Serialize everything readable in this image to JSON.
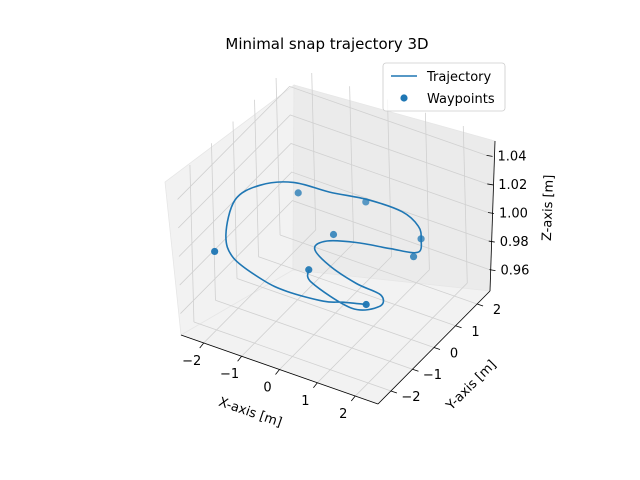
{
  "chart_data": {
    "type": "line",
    "projection": "3d",
    "title": "Minimal snap trajectory 3D",
    "xlabel": "X-axis [m]",
    "ylabel": "Y-axis [m]",
    "zlabel": "Z-axis [m]",
    "xlim": [
      -2.6,
      2.6
    ],
    "ylim": [
      -2.6,
      2.6
    ],
    "zlim": [
      0.945,
      1.055
    ],
    "x_ticks": [
      -2,
      -1,
      0,
      1,
      2
    ],
    "y_ticks": [
      -2,
      -1,
      0,
      1,
      2
    ],
    "z_ticks": [
      0.96,
      0.98,
      1.0,
      1.02,
      1.04
    ],
    "x_tick_labels": [
      "−2",
      "−1",
      "0",
      "1",
      "2"
    ],
    "y_tick_labels": [
      "−2",
      "−1",
      "0",
      "1",
      "2"
    ],
    "z_tick_labels": [
      "0.96",
      "0.98",
      "1.00",
      "1.02",
      "1.04"
    ],
    "grid": true,
    "legend_position": "top-right",
    "series": [
      {
        "name": "Trajectory",
        "type": "line",
        "color": "#1f77b4",
        "note_points": "approximate path read from the rendered curve",
        "x": [
          2.0,
          1.5,
          1.1,
          0.2,
          -0.5,
          -1.5,
          -2.1,
          -2.6,
          -2.4,
          -1.8,
          -0.9,
          0.0,
          0.9,
          1.5,
          1.8,
          2.0,
          1.4,
          0.6,
          0.0,
          -0.1,
          0.5,
          1.4,
          2.1,
          2.3,
          1.8,
          0.5,
          0.2
        ],
        "y": [
          -2.0,
          -2.2,
          -2.4,
          -2.5,
          -2.4,
          -2.0,
          -1.3,
          0.0,
          0.8,
          1.3,
          1.4,
          1.6,
          1.6,
          1.3,
          0.9,
          0.4,
          0.2,
          0.0,
          -0.3,
          -0.7,
          -1.1,
          -1.4,
          -1.5,
          -1.9,
          -2.3,
          -1.9,
          -1.5
        ],
        "z": [
          1.0,
          1.0,
          1.0,
          1.0,
          1.0,
          1.0,
          1.0,
          1.0,
          1.0,
          1.0,
          1.0,
          1.0,
          1.0,
          1.0,
          1.0,
          1.0,
          1.0,
          1.0,
          1.0,
          1.0,
          1.0,
          1.0,
          1.0,
          1.0,
          1.0,
          1.0,
          1.0
        ]
      },
      {
        "name": "Waypoints",
        "type": "scatter",
        "color": "#1f77b4",
        "x": [
          -2.0,
          -1.5,
          0.0,
          1.8,
          2.0,
          0.0,
          0.2,
          2.0
        ],
        "y": [
          -2.0,
          1.0,
          1.5,
          0.9,
          0.2,
          0.0,
          -1.5,
          -2.0
        ],
        "z": [
          1.0,
          1.0,
          1.0,
          1.0,
          1.0,
          1.0,
          1.0,
          1.0
        ]
      }
    ]
  }
}
